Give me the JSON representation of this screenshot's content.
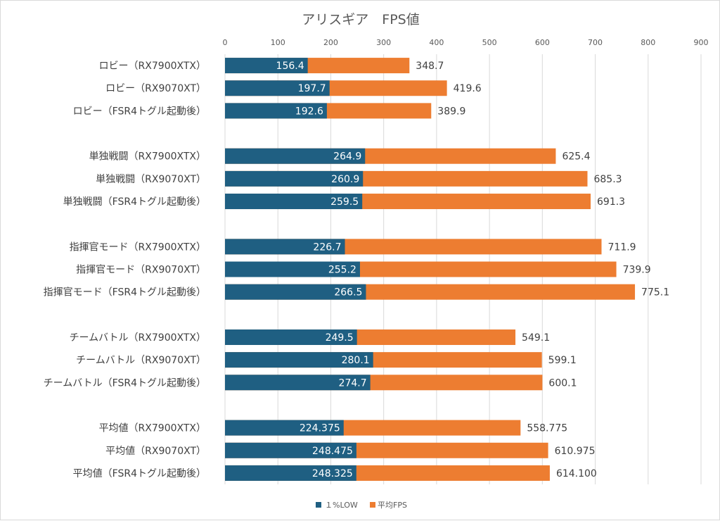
{
  "chart_data": {
    "type": "bar",
    "orientation": "horizontal",
    "overlap": true,
    "title": "アリスギア　FPS値",
    "xlabel": "",
    "ylabel": "",
    "xlim": [
      0,
      900
    ],
    "x_ticks": [
      0,
      100,
      200,
      300,
      400,
      500,
      600,
      700,
      800,
      900
    ],
    "x_axis_position": "top",
    "grid": true,
    "legend_position": "bottom",
    "categories": [
      "ロビー（RX7900XTX）",
      "ロビー（RX9070XT）",
      "ロビー（FSR4トグル起動後）",
      "",
      "単独戦闘（RX7900XTX）",
      "単独戦闘（RX9070XT）",
      "単独戦闘（FSR4トグル起動後）",
      "",
      "指揮官モード（RX7900XTX）",
      "指揮官モード（RX9070XT）",
      "指揮官モード（FSR4トグル起動後）",
      "",
      "チームバトル（RX7900XTX）",
      "チームバトル（RX9070XT）",
      "チームバトル（FSR4トグル起動後）",
      "",
      "平均値（RX7900XTX）",
      "平均値（RX9070XT）",
      "平均値（FSR4トグル起動後）"
    ],
    "series": [
      {
        "name": "平均FPS",
        "color": "#ED7D31",
        "values": [
          348.7,
          419.6,
          389.9,
          null,
          625.4,
          685.3,
          691.3,
          null,
          711.9,
          739.9,
          775.1,
          null,
          549.1,
          599.1,
          600.1,
          null,
          558.775,
          610.975,
          614.1
        ],
        "labels": [
          "348.7",
          "419.6",
          "389.9",
          "",
          "625.4",
          "685.3",
          "691.3",
          "",
          "711.9",
          "739.9",
          "775.1",
          "",
          "549.1",
          "599.1",
          "600.1",
          "",
          "558.775",
          "610.975",
          "614.100"
        ]
      },
      {
        "name": "１%LOW",
        "color": "#1F5F82",
        "values": [
          156.4,
          197.7,
          192.6,
          null,
          264.9,
          260.9,
          259.5,
          null,
          226.7,
          255.2,
          266.5,
          null,
          249.5,
          280.1,
          274.7,
          null,
          224.375,
          248.475,
          248.325
        ],
        "labels": [
          "156.4",
          "197.7",
          "192.6",
          "",
          "264.9",
          "260.9",
          "259.5",
          "",
          "226.7",
          "255.2",
          "266.5",
          "",
          "249.5",
          "280.1",
          "274.7",
          "",
          "224.375",
          "248.475",
          "248.325"
        ]
      }
    ],
    "legend": [
      {
        "name": "１%LOW",
        "color": "#1F5F82"
      },
      {
        "name": "平均FPS",
        "color": "#ED7D31"
      }
    ]
  }
}
